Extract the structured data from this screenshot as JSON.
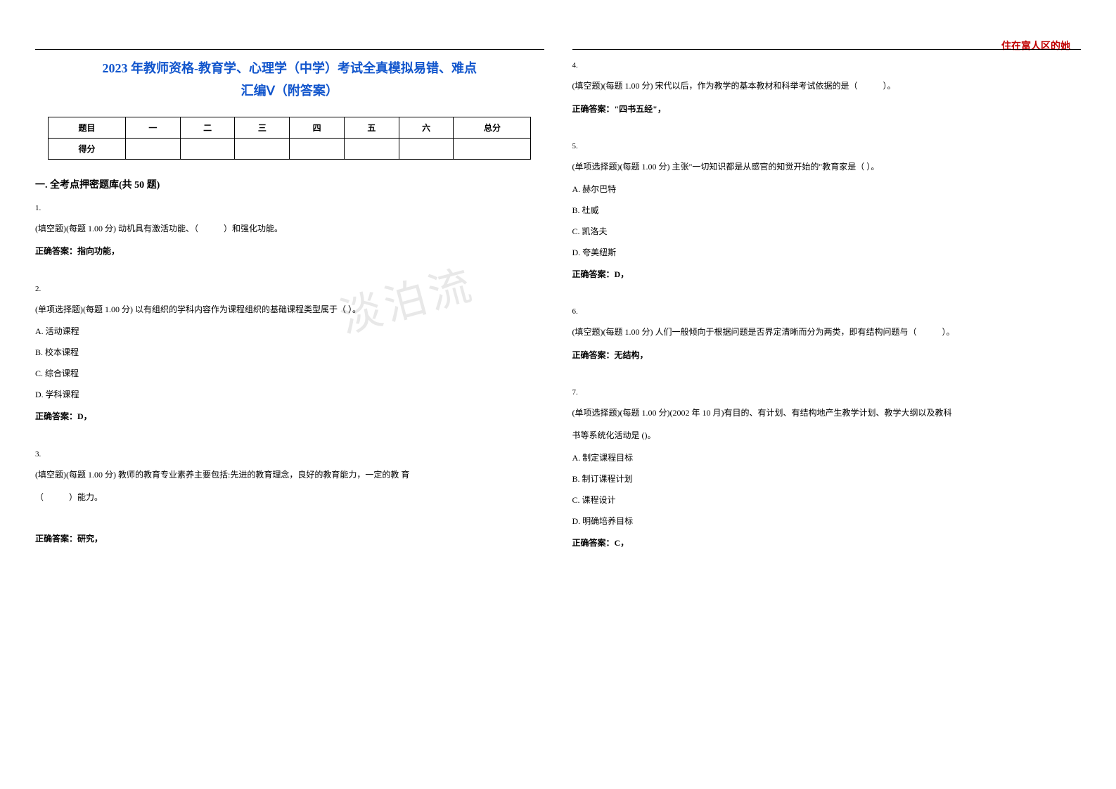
{
  "header_right": "住在富人区的她",
  "title_line1": "2023 年教师资格-教育学、心理学（中学）考试全真模拟易错、难点",
  "title_line2": "汇编Ⅴ（附答案）",
  "watermark": "淡泊流",
  "score_table": {
    "headers": [
      "题目",
      "一",
      "二",
      "三",
      "四",
      "五",
      "六",
      "总分"
    ],
    "row_label": "得分"
  },
  "section_title": "一. 全考点押密题库(共 50 题)",
  "questions_left": [
    {
      "num": "1.",
      "text": "(填空题)(每题 1.00 分) 动机具有激活功能、（　　　）和强化功能。",
      "answer": "正确答案：指向功能，"
    },
    {
      "num": "2.",
      "text": "(单项选择题)(每题 1.00 分) 以有组织的学科内容作为课程组织的基础课程类型属于（ ）。",
      "options": [
        "A. 活动课程",
        "B. 校本课程",
        "C. 综合课程",
        "D. 学科课程"
      ],
      "answer": "正确答案：D，"
    },
    {
      "num": "3.",
      "text": "(填空题)(每题 1.00 分) 教师的教育专业素养主要包括:先进的教育理念，良好的教育能力，一定的教 育",
      "text2": "（　　　）能力。",
      "answer": "正确答案：研究，"
    }
  ],
  "questions_right": [
    {
      "num": "4.",
      "text": "(填空题)(每题 1.00 分) 宋代以后，作为教学的基本教材和科举考试依据的是（　　　）。",
      "answer": "正确答案：\"四书五经\"，"
    },
    {
      "num": "5.",
      "text": "(单项选择题)(每题 1.00 分) 主张\"一切知识都是从感官的知觉开始的\"教育家是（ ）。",
      "options": [
        "A. 赫尔巴特",
        "B. 杜威",
        "C. 凯洛夫",
        "D. 夸美纽斯"
      ],
      "answer": "正确答案：D，"
    },
    {
      "num": "6.",
      "text": "(填空题)(每题 1.00 分) 人们一般倾向于根据问题是否界定清晰而分为两类，即有结构问题与（　　　）。",
      "answer": "正确答案：无结构，"
    },
    {
      "num": "7.",
      "text": "(单项选择题)(每题 1.00 分)(2002 年 10 月)有目的、有计划、有结构地产生教学计划、教学大纲以及教科",
      "text2": "书等系统化活动是 ()。",
      "options": [
        "A. 制定课程目标",
        "B. 制订课程计划",
        "C. 课程设计",
        "D. 明确培养目标"
      ],
      "answer": "正确答案：C，"
    }
  ]
}
